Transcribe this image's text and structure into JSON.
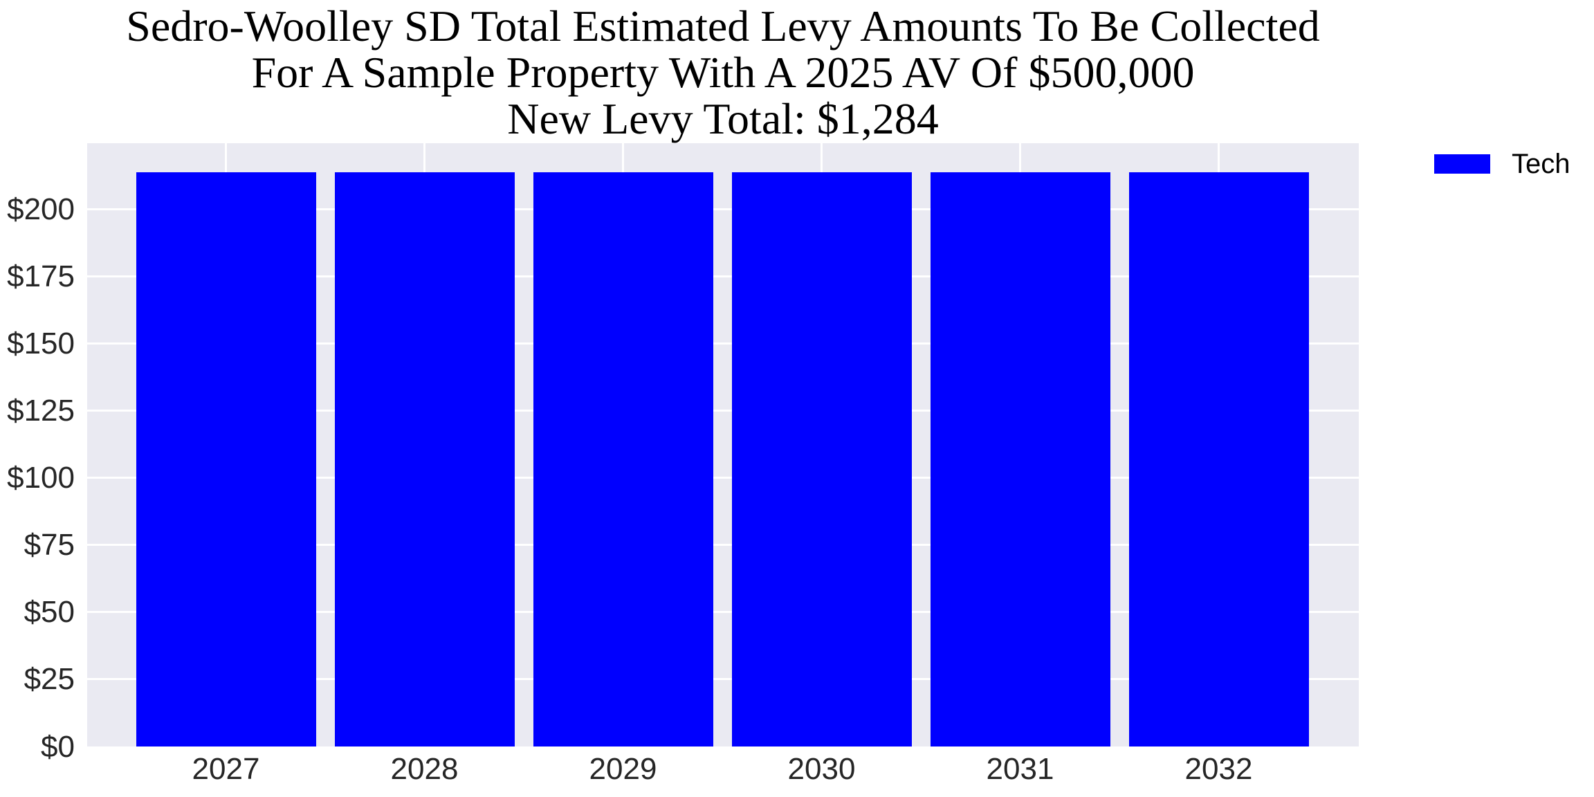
{
  "figure": {
    "title_lines": [
      "Sedro-Woolley SD Total Estimated Levy Amounts To Be Collected",
      "For A Sample Property With A 2025 AV Of $500,000",
      "New Levy Total: $1,284"
    ]
  },
  "legend": {
    "items": [
      {
        "label": "Tech",
        "color": "#0000ff"
      }
    ]
  },
  "chart_data": {
    "type": "bar",
    "title": "Sedro-Woolley SD Total Estimated Levy Amounts To Be Collected For A Sample Property With A 2025 AV Of $500,000 New Levy Total: $1,284",
    "new_levy_total": "$1,284",
    "categories": [
      "2027",
      "2028",
      "2029",
      "2030",
      "2031",
      "2032"
    ],
    "series": [
      {
        "name": "Tech",
        "color": "#0000ff",
        "values": [
          214,
          214,
          214,
          214,
          214,
          214
        ]
      }
    ],
    "xlabel": "",
    "ylabel": "",
    "ylim": [
      0,
      224.7
    ],
    "yticks": [
      0,
      25,
      50,
      75,
      100,
      125,
      150,
      175,
      200
    ],
    "ytick_labels": [
      "$0",
      "$25",
      "$50",
      "$75",
      "$100",
      "$125",
      "$150",
      "$175",
      "$200"
    ],
    "grid": true,
    "legend_position": "outside upper right",
    "colors": {
      "plot_background": "#eaeaf2",
      "gridline": "#ffffff",
      "bar": "#0000ff",
      "tick_text": "#262626",
      "title_text": "#000000"
    }
  }
}
